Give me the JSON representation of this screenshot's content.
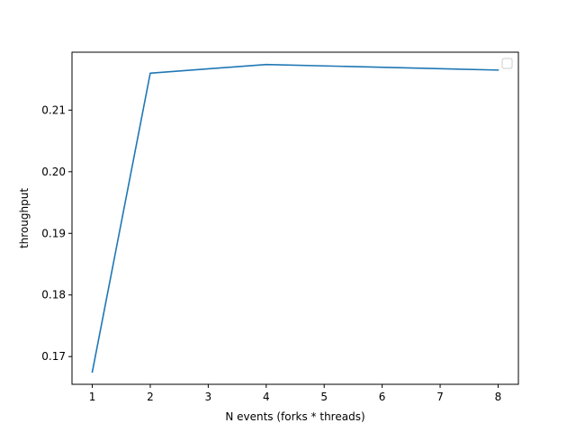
{
  "chart_data": {
    "type": "line",
    "title": "",
    "xlabel": "N events (forks * threads)",
    "ylabel": "throughput",
    "xlim": [
      0.65,
      8.35
    ],
    "ylim": [
      0.1655,
      0.2194
    ],
    "x_ticks": [
      1,
      2,
      3,
      4,
      5,
      6,
      7,
      8
    ],
    "y_ticks": [
      0.17,
      0.18,
      0.19,
      0.2,
      0.21
    ],
    "y_tick_labels": [
      "0.17",
      "0.18",
      "0.19",
      "0.20",
      "0.21"
    ],
    "grid": false,
    "legend": {
      "placement": "top-right",
      "entries": []
    },
    "series": [
      {
        "color": "#1f77b4",
        "x": [
          1,
          2,
          4,
          8
        ],
        "y": [
          0.1675,
          0.216,
          0.2174,
          0.2165
        ]
      }
    ]
  }
}
